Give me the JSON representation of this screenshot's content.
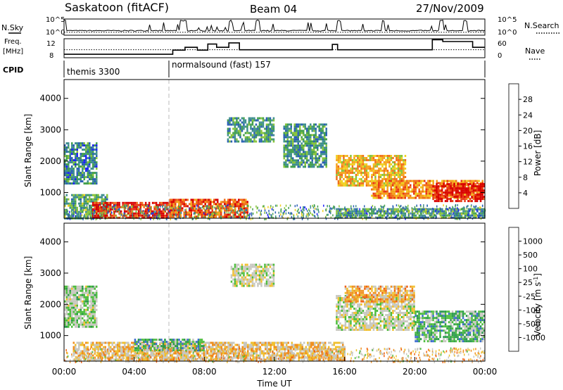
{
  "header": {
    "station": "Saskatoon (fitACF)",
    "beam": "Beam 04",
    "date": "27/Nov/2009"
  },
  "strip_labels": {
    "nsky": "N.Sky",
    "nsearch": "N.Search",
    "freq_line1": "Freq.",
    "freq_line2": "[MHz]",
    "nave": "Nave",
    "cpid": "CPID"
  },
  "chart_data": [
    {
      "type": "line",
      "name": "noise-strip",
      "x": [
        "00:00",
        "04:00",
        "08:00",
        "12:00",
        "16:00",
        "20:00",
        "00:00"
      ],
      "left_ticks": [
        "10^5",
        "10^0"
      ],
      "right_ticks": [
        "10^5",
        "10^0"
      ],
      "series": [
        {
          "name": "N.Sky",
          "style": "solid",
          "level": 0.28,
          "spikes": [
            0.0,
            6.7,
            6.9,
            9.5,
            11.0,
            15.7,
            18.2,
            21.5,
            22.9
          ]
        },
        {
          "name": "N.Search",
          "style": "dotted",
          "level": 0.18
        }
      ]
    },
    {
      "type": "line",
      "name": "freq-nave-strip",
      "left_ticks": [
        "12",
        "8"
      ],
      "right_ticks": [
        "60",
        "0"
      ],
      "series": [
        {
          "name": "Freq.",
          "style": "solid",
          "steps_hour": [
            0,
            6.2,
            6.9,
            7.6,
            8.2,
            8.7,
            9.4,
            10.0,
            15.3,
            15.6,
            19.0,
            21.0,
            21.6,
            23.3,
            24
          ],
          "steps_level": [
            0.18,
            0.4,
            0.55,
            0.4,
            0.72,
            0.55,
            0.78,
            0.42,
            0.7,
            0.42,
            0.42,
            0.95,
            0.85,
            0.55
          ]
        },
        {
          "name": "Nave",
          "style": "dotted",
          "level": 0.42
        }
      ]
    },
    {
      "type": "table",
      "name": "cpid-strip",
      "entries": [
        {
          "start": "00:00",
          "label": "themis 3300"
        },
        {
          "start": "06:00",
          "label": "normalsound (fast) 157"
        }
      ]
    },
    {
      "type": "heatmap",
      "name": "power-panel",
      "xlabel": "",
      "ylabel": "Slant Range [km]",
      "ylim": [
        180,
        4600
      ],
      "yticks": [
        "1000",
        "2000",
        "3000",
        "4000"
      ],
      "colorbar": {
        "label": "Power [dB]",
        "ticks": [
          "28",
          "24",
          "20",
          "16",
          "12",
          "8",
          "4"
        ],
        "colors": [
          "#1f1fff",
          "#2a5fb4",
          "#3f8f8f",
          "#43a04d",
          "#88c43a",
          "#f0d020",
          "#f5a31c",
          "#f0701a",
          "#e83814",
          "#d80000"
        ]
      },
      "regions": [
        {
          "h0": 0.0,
          "h1": 1.9,
          "r0": 1300,
          "r1": 2600,
          "level": 0.25
        },
        {
          "h0": 0.0,
          "h1": 2.5,
          "r0": 180,
          "r1": 950,
          "level": 0.35
        },
        {
          "h0": 1.6,
          "h1": 6.0,
          "r0": 200,
          "r1": 700,
          "level": 0.92
        },
        {
          "h0": 6.0,
          "h1": 10.5,
          "r0": 250,
          "r1": 800,
          "level": 0.8
        },
        {
          "h0": 9.3,
          "h1": 12.0,
          "r0": 2600,
          "r1": 3400,
          "level": 0.3
        },
        {
          "h0": 12.5,
          "h1": 15.0,
          "r0": 1800,
          "r1": 3200,
          "level": 0.3
        },
        {
          "h0": 15.5,
          "h1": 19.5,
          "r0": 1200,
          "r1": 2200,
          "level": 0.62
        },
        {
          "h0": 17.5,
          "h1": 23.9,
          "r0": 800,
          "r1": 1400,
          "level": 0.7
        },
        {
          "h0": 21.0,
          "h1": 24.0,
          "r0": 700,
          "r1": 1300,
          "level": 0.94
        },
        {
          "h0": 15.5,
          "h1": 24.0,
          "r0": 180,
          "r1": 500,
          "level": 0.3
        }
      ]
    },
    {
      "type": "heatmap",
      "name": "velocity-panel",
      "xlabel": "Time UT",
      "ylabel": "Slant Range [km]",
      "ylim": [
        180,
        4600
      ],
      "yticks": [
        "1000",
        "2000",
        "3000",
        "4000"
      ],
      "x": [
        "00:00",
        "04:00",
        "08:00",
        "12:00",
        "16:00",
        "20:00",
        "00:00"
      ],
      "colorbar": {
        "label": "Velocity [m s-1]",
        "ticks": [
          "1000",
          "500",
          "100",
          "25",
          "-25",
          "-100",
          "-500",
          "-1000"
        ],
        "colors": [
          "#2040c0",
          "#3a6ad0",
          "#2a9a4a",
          "#4cbd3c",
          "#c8c8c0",
          "#c8c8c0",
          "#f0c030",
          "#f09020",
          "#f06010",
          "#d80000"
        ]
      },
      "regions": [
        {
          "h0": 0.0,
          "h1": 1.9,
          "r0": 1300,
          "r1": 2600,
          "level": 0.45
        },
        {
          "h0": 0.5,
          "h1": 16.0,
          "r0": 200,
          "r1": 800,
          "level": 0.62
        },
        {
          "h0": 4.0,
          "h1": 8.0,
          "r0": 500,
          "r1": 900,
          "level": 0.3
        },
        {
          "h0": 9.5,
          "h1": 12.0,
          "r0": 2600,
          "r1": 3300,
          "level": 0.5
        },
        {
          "h0": 15.5,
          "h1": 20.0,
          "r0": 1200,
          "r1": 2300,
          "level": 0.5
        },
        {
          "h0": 16.0,
          "h1": 20.0,
          "r0": 2100,
          "r1": 2600,
          "level": 0.7
        },
        {
          "h0": 20.0,
          "h1": 24.0,
          "r0": 800,
          "r1": 1800,
          "level": 0.32
        }
      ]
    }
  ]
}
